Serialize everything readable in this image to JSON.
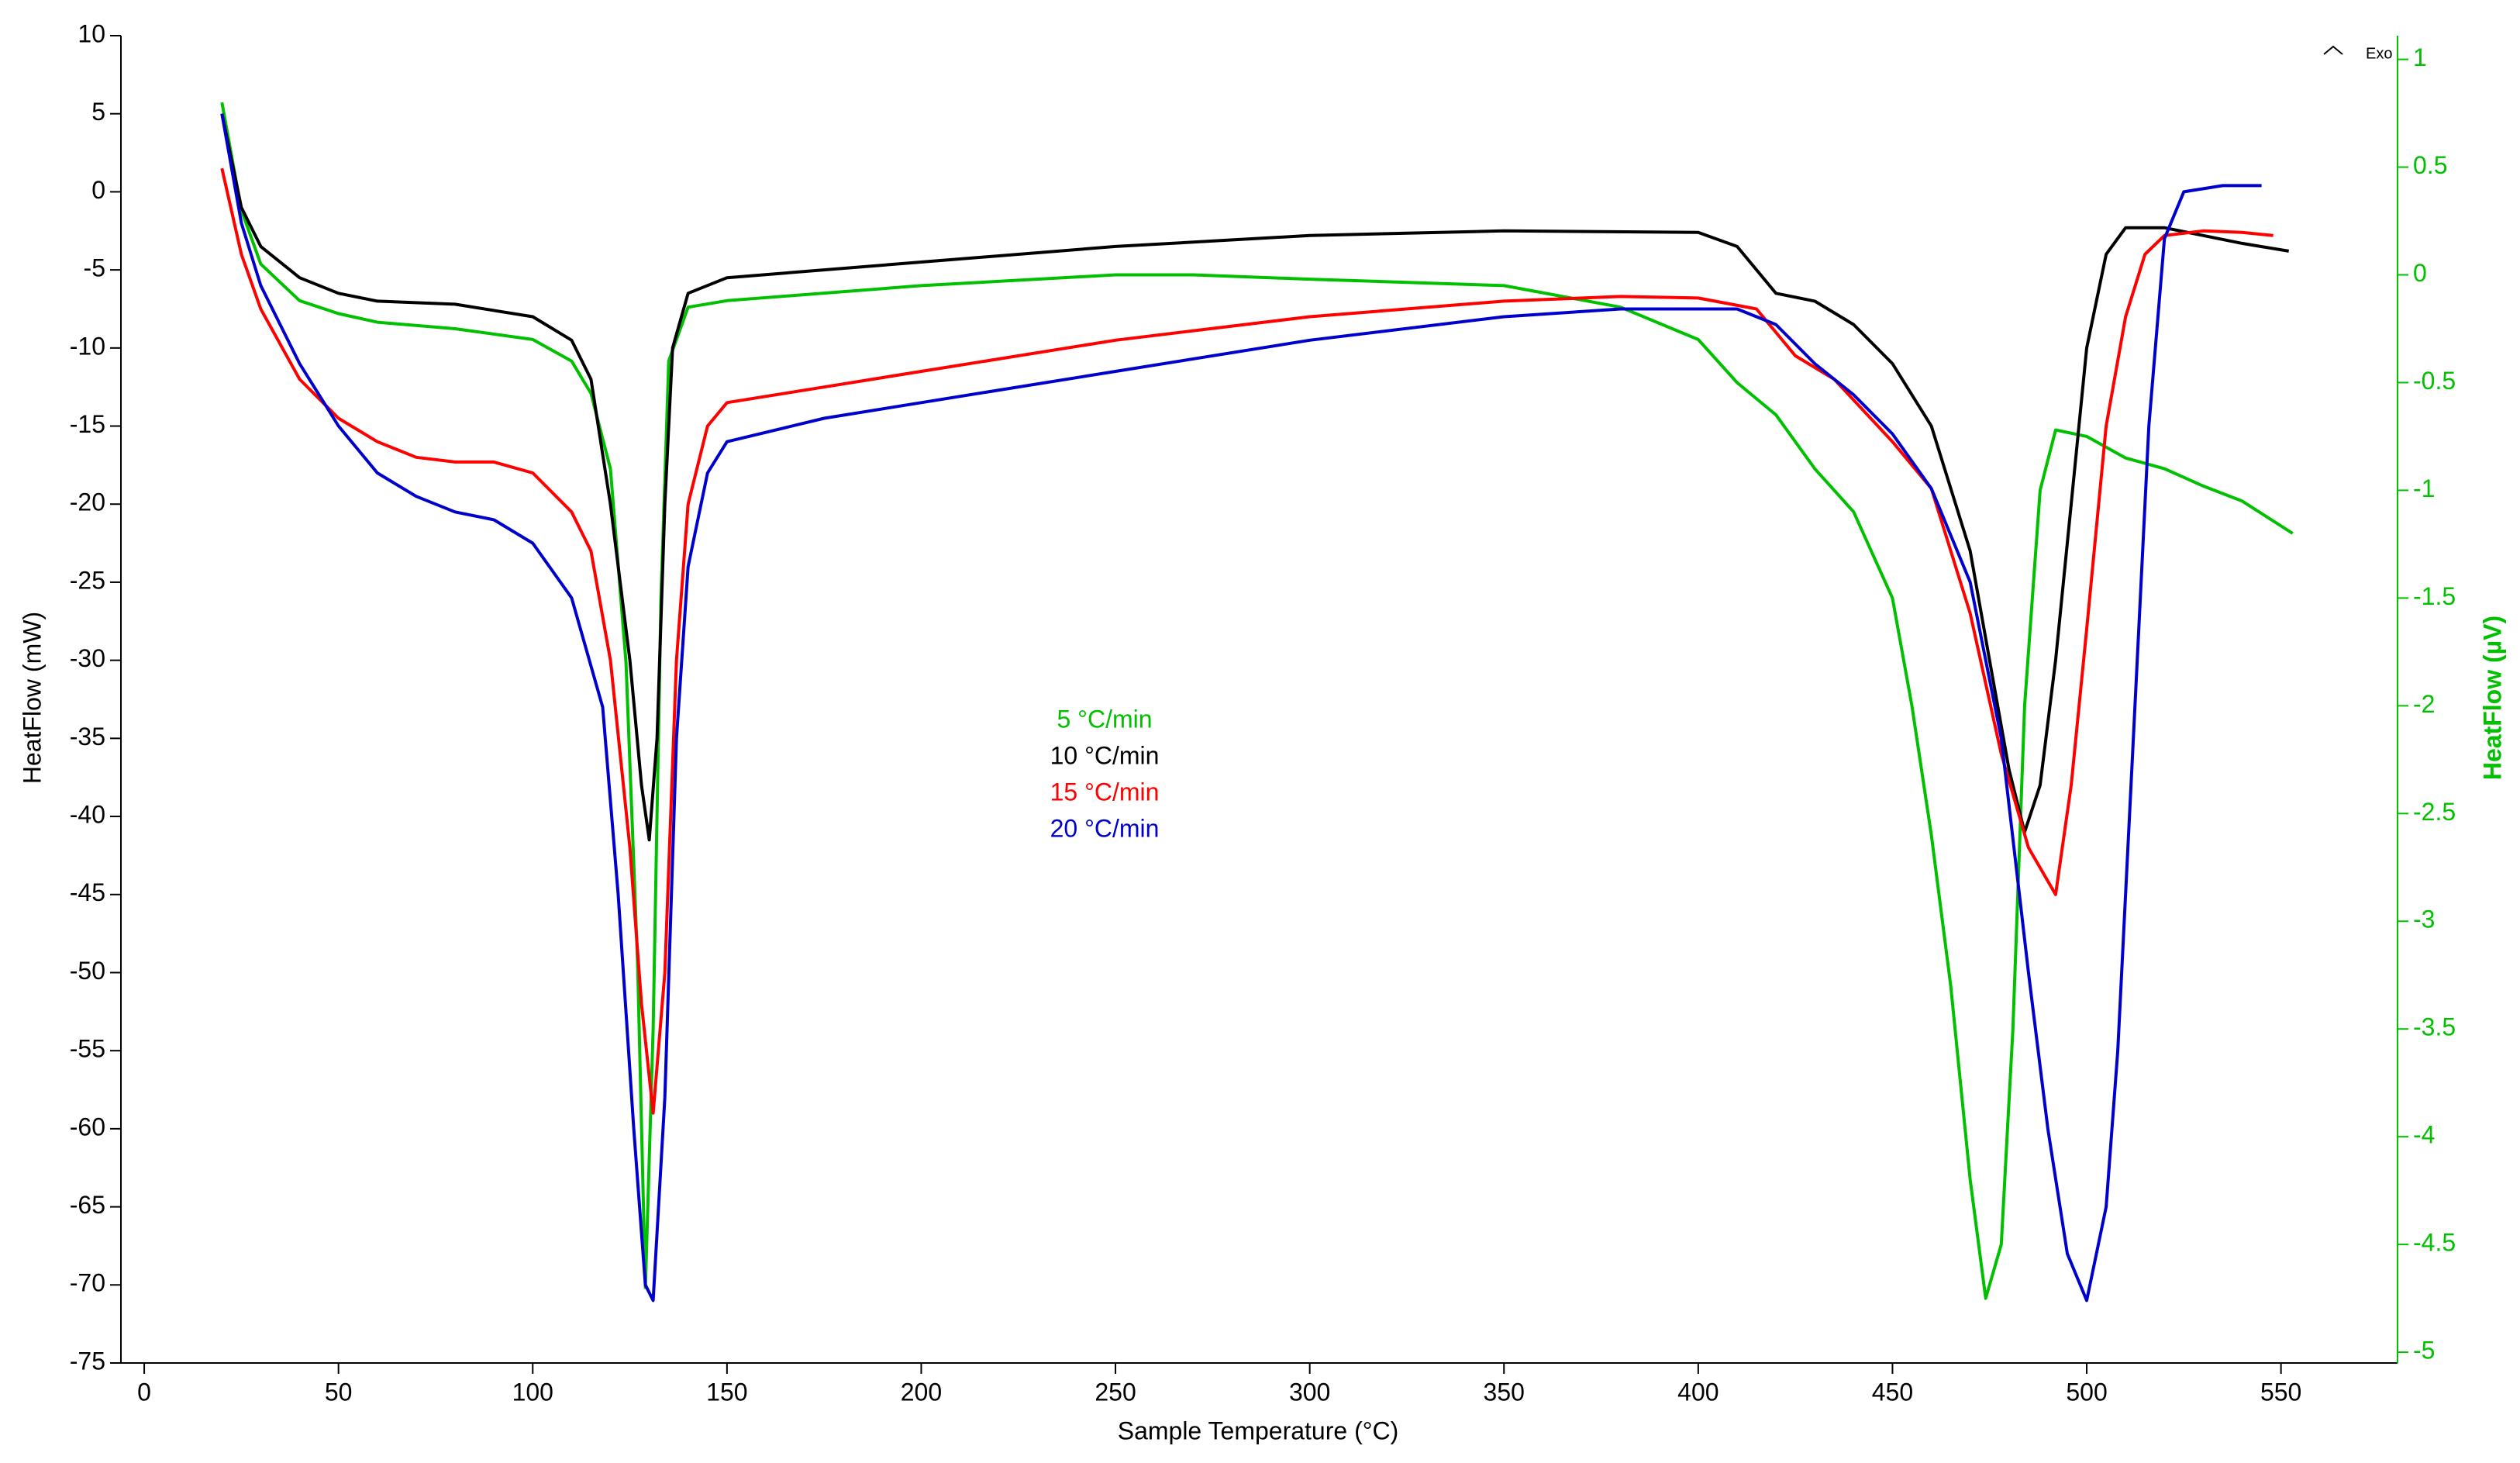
{
  "chart_data": {
    "type": "line",
    "xlabel": "Sample Temperature (°C)",
    "ylabel": "HeatFlow (mW)",
    "y2label": "HeatFlow (µV)",
    "annotation": "Exo",
    "xlim": [
      -6,
      580
    ],
    "xticks": [
      0,
      50,
      100,
      150,
      200,
      250,
      300,
      350,
      400,
      450,
      500,
      550
    ],
    "ylim": [
      -75,
      10
    ],
    "yticks": [
      -75,
      -70,
      -65,
      -60,
      -55,
      -50,
      -45,
      -40,
      -35,
      -30,
      -25,
      -20,
      -15,
      -10,
      -5,
      0,
      5,
      10
    ],
    "y2lim": [
      -5.05,
      1.11
    ],
    "y2ticks": [
      -5,
      -4.5,
      -4,
      -3.5,
      -3,
      -2.5,
      -2,
      -1.5,
      -1,
      -0.5,
      0,
      0.5,
      1
    ],
    "y2color": "#00c000",
    "series": [
      {
        "name": "5 °C/min",
        "color": "#00c000",
        "axis": "y2",
        "x": [
          20,
          25,
          30,
          40,
          50,
          60,
          80,
          100,
          110,
          115,
          120,
          124,
          127,
          129,
          131,
          133,
          135,
          140,
          150,
          200,
          250,
          270,
          300,
          350,
          380,
          400,
          410,
          420,
          430,
          440,
          450,
          455,
          460,
          465,
          470,
          474,
          478,
          481,
          484,
          488,
          492,
          500,
          510,
          520,
          530,
          540,
          553
        ],
        "values": [
          0.8,
          0.3,
          0.05,
          -0.12,
          -0.18,
          -0.22,
          -0.25,
          -0.3,
          -0.4,
          -0.55,
          -0.9,
          -1.8,
          -3.2,
          -4.7,
          -3.5,
          -1.5,
          -0.4,
          -0.15,
          -0.12,
          -0.05,
          0,
          0,
          -0.02,
          -0.05,
          -0.15,
          -0.3,
          -0.5,
          -0.65,
          -0.9,
          -1.1,
          -1.5,
          -2.0,
          -2.6,
          -3.3,
          -4.2,
          -4.75,
          -4.5,
          -3.5,
          -2.0,
          -1.0,
          -0.72,
          -0.75,
          -0.85,
          -0.9,
          -0.98,
          -1.05,
          -1.2
        ]
      },
      {
        "name": "10 °C/min",
        "color": "#000000",
        "x": [
          20,
          25,
          30,
          40,
          50,
          60,
          80,
          100,
          110,
          115,
          120,
          125,
          128,
          130,
          132,
          134,
          136,
          140,
          150,
          200,
          250,
          300,
          350,
          400,
          410,
          420,
          430,
          440,
          450,
          460,
          470,
          475,
          480,
          484,
          488,
          492,
          496,
          500,
          505,
          510,
          520,
          530,
          540,
          552
        ],
        "values": [
          5,
          -1,
          -3.5,
          -5.5,
          -6.5,
          -7,
          -7.2,
          -8,
          -9.5,
          -12,
          -20,
          -30,
          -38,
          -41.5,
          -35,
          -20,
          -10,
          -6.5,
          -5.5,
          -4.5,
          -3.5,
          -2.8,
          -2.5,
          -2.6,
          -3.5,
          -6.5,
          -7,
          -8.5,
          -11,
          -15,
          -23,
          -30,
          -37,
          -41,
          -38,
          -30,
          -20,
          -10,
          -4,
          -2.3,
          -2.3,
          -2.8,
          -3.3,
          -3.8
        ]
      },
      {
        "name": "15 °C/min",
        "color": "#ff0000",
        "x": [
          20,
          25,
          30,
          40,
          50,
          60,
          70,
          80,
          90,
          100,
          110,
          115,
          120,
          125,
          128,
          131,
          134,
          137,
          140,
          145,
          150,
          175,
          200,
          250,
          300,
          350,
          380,
          400,
          415,
          425,
          435,
          450,
          460,
          470,
          478,
          485,
          492,
          496,
          500,
          505,
          510,
          515,
          520,
          530,
          540,
          548
        ],
        "values": [
          1.5,
          -4,
          -7.5,
          -12,
          -14.5,
          -16,
          -17,
          -17.3,
          -17.3,
          -18,
          -20.5,
          -23,
          -30,
          -42,
          -52,
          -59,
          -50,
          -30,
          -20,
          -15,
          -13.5,
          -12.5,
          -11.5,
          -9.5,
          -8,
          -7,
          -6.7,
          -6.8,
          -7.5,
          -10.5,
          -12,
          -16,
          -19,
          -27,
          -36,
          -42,
          -45,
          -38,
          -28,
          -15,
          -8,
          -4,
          -2.8,
          -2.5,
          -2.6,
          -2.8
        ]
      },
      {
        "name": "20 °C/min",
        "color": "#0000cc",
        "x": [
          20,
          25,
          30,
          40,
          50,
          60,
          70,
          80,
          90,
          100,
          110,
          118,
          122,
          126,
          129,
          131,
          134,
          137,
          140,
          145,
          150,
          175,
          200,
          250,
          300,
          350,
          380,
          410,
          420,
          430,
          440,
          450,
          460,
          470,
          478,
          485,
          490,
          495,
          500,
          505,
          508,
          512,
          516,
          520,
          525,
          535,
          545
        ],
        "values": [
          5,
          -2,
          -6,
          -11,
          -15,
          -18,
          -19.5,
          -20.5,
          -21,
          -22.5,
          -26,
          -33,
          -45,
          -60,
          -70,
          -71,
          -58,
          -35,
          -24,
          -18,
          -16,
          -14.5,
          -13.5,
          -11.5,
          -9.5,
          -8,
          -7.5,
          -7.5,
          -8.5,
          -11,
          -13,
          -15.5,
          -19,
          -25,
          -35,
          -50,
          -60,
          -68,
          -71,
          -65,
          -55,
          -35,
          -15,
          -3,
          0,
          0.4,
          0.4
        ]
      }
    ]
  }
}
